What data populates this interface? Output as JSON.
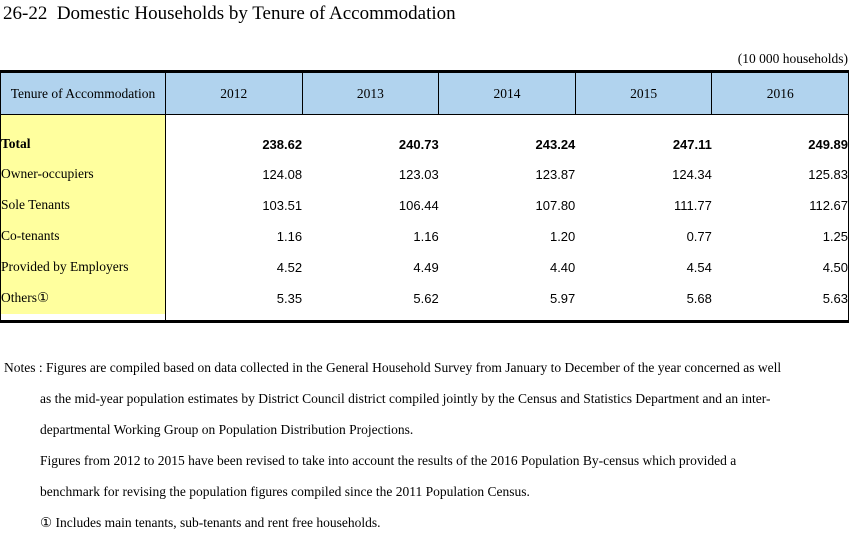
{
  "title": "26-22  Domestic Households by Tenure of Accommodation",
  "units_label": "(10 000 households)",
  "colors": {
    "header_bg": "#B1D3EE",
    "label_bg": "#FFFF9E",
    "border": "#000000"
  },
  "table": {
    "header": [
      "Tenure of Accommodation",
      "2012",
      "2013",
      "2014",
      "2015",
      "2016"
    ],
    "rows": [
      {
        "label": "Total",
        "values": [
          "238.62",
          "240.73",
          "243.24",
          "247.11",
          "249.89"
        ]
      },
      {
        "label": "Owner-occupiers",
        "values": [
          "124.08",
          "123.03",
          "123.87",
          "124.34",
          "125.83"
        ]
      },
      {
        "label": "Sole Tenants",
        "values": [
          "103.51",
          "106.44",
          "107.80",
          "111.77",
          "112.67"
        ]
      },
      {
        "label": "Co-tenants",
        "values": [
          "1.16",
          "1.16",
          "1.20",
          "0.77",
          "1.25"
        ]
      },
      {
        "label": "Provided by Employers",
        "values": [
          "4.52",
          "4.49",
          "4.40",
          "4.54",
          "4.50"
        ]
      },
      {
        "label": "Others①",
        "values": [
          "5.35",
          "5.62",
          "5.97",
          "5.68",
          "5.63"
        ]
      }
    ]
  },
  "notes": {
    "lines": [
      "Notes : Figures are compiled based on data collected in the General Household Survey from January to December of the year concerned as well",
      "as the mid-year population estimates by District Council district compiled jointly by the Census and Statistics Department and an inter-",
      "departmental Working Group on Population Distribution Projections.",
      "Figures from 2012 to 2015 have been revised to take into account the results of the 2016 Population By-census which provided a",
      "benchmark for revising the population figures compiled since the 2011 Population Census.",
      "① Includes main tenants, sub-tenants and rent free households."
    ]
  }
}
